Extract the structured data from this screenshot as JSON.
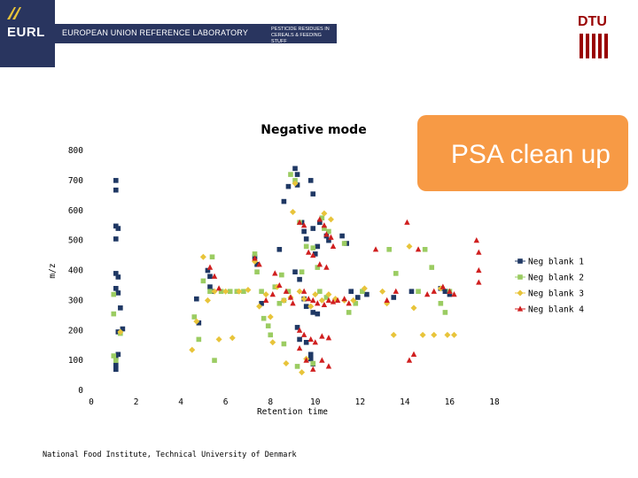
{
  "banner": {
    "logo_text": "EURL",
    "lab_name": "EUROPEAN UNION REFERENCE LABORATORY",
    "lab_scope": "PESTICIDE RESIDUES IN CEREALS & FEEDING STUFF",
    "institution_logo": "DTU"
  },
  "callout": {
    "text": "PSA clean up"
  },
  "footer": {
    "text": "National Food Institute, Technical University of Denmark"
  },
  "chart_data": {
    "type": "scatter",
    "title": "Negative mode",
    "xlabel": "Retention time",
    "ylabel": "m/z",
    "xlim": [
      0,
      18
    ],
    "ylim": [
      0,
      800
    ],
    "xticks": [
      "0",
      "2",
      "4",
      "6",
      "8",
      "10",
      "12",
      "14",
      "16",
      "18"
    ],
    "yticks": [
      "0",
      "100",
      "200",
      "300",
      "400",
      "500",
      "600",
      "700",
      "800"
    ],
    "series": [
      {
        "name": "Neg blank 1",
        "marker": "square",
        "color": "#1f3864",
        "points": [
          [
            1.1,
            700
          ],
          [
            1.1,
            668
          ],
          [
            1.1,
            548
          ],
          [
            1.2,
            540
          ],
          [
            1.1,
            505
          ],
          [
            1.1,
            390
          ],
          [
            1.2,
            378
          ],
          [
            1.1,
            340
          ],
          [
            1.2,
            325
          ],
          [
            1.3,
            275
          ],
          [
            1.2,
            195
          ],
          [
            1.4,
            205
          ],
          [
            1.2,
            120
          ],
          [
            1.1,
            110
          ],
          [
            1.1,
            85
          ],
          [
            1.1,
            70
          ],
          [
            4.7,
            305
          ],
          [
            4.8,
            225
          ],
          [
            5.2,
            400
          ],
          [
            5.3,
            380
          ],
          [
            5.3,
            345
          ],
          [
            5.4,
            330
          ],
          [
            7.3,
            445
          ],
          [
            7.4,
            420
          ],
          [
            7.6,
            290
          ],
          [
            8.4,
            470
          ],
          [
            8.6,
            630
          ],
          [
            8.8,
            680
          ],
          [
            9.1,
            740
          ],
          [
            9.2,
            720
          ],
          [
            9.2,
            685
          ],
          [
            9.4,
            560
          ],
          [
            9.5,
            530
          ],
          [
            9.6,
            505
          ],
          [
            9.8,
            700
          ],
          [
            9.9,
            655
          ],
          [
            9.9,
            540
          ],
          [
            10.0,
            455
          ],
          [
            10.1,
            480
          ],
          [
            10.2,
            560
          ],
          [
            10.5,
            515
          ],
          [
            10.6,
            500
          ],
          [
            9.1,
            395
          ],
          [
            9.3,
            370
          ],
          [
            9.5,
            305
          ],
          [
            9.6,
            280
          ],
          [
            9.9,
            260
          ],
          [
            10.1,
            255
          ],
          [
            9.2,
            210
          ],
          [
            9.3,
            170
          ],
          [
            9.6,
            160
          ],
          [
            9.8,
            120
          ],
          [
            9.8,
            105
          ],
          [
            9.9,
            88
          ],
          [
            11.2,
            515
          ],
          [
            11.4,
            490
          ],
          [
            11.6,
            330
          ],
          [
            11.9,
            310
          ],
          [
            12.3,
            320
          ],
          [
            13.5,
            310
          ],
          [
            14.3,
            330
          ],
          [
            15.6,
            340
          ],
          [
            15.8,
            330
          ],
          [
            16.0,
            320
          ]
        ]
      },
      {
        "name": "Neg blank 2",
        "marker": "square",
        "color": "#9bcc62",
        "points": [
          [
            1.0,
            320
          ],
          [
            1.0,
            255
          ],
          [
            1.0,
            115
          ],
          [
            1.1,
            100
          ],
          [
            1.3,
            190
          ],
          [
            4.6,
            245
          ],
          [
            4.8,
            170
          ],
          [
            5.0,
            365
          ],
          [
            5.3,
            330
          ],
          [
            5.4,
            445
          ],
          [
            5.5,
            100
          ],
          [
            5.8,
            330
          ],
          [
            6.2,
            330
          ],
          [
            6.5,
            330
          ],
          [
            6.8,
            330
          ],
          [
            7.3,
            455
          ],
          [
            7.4,
            395
          ],
          [
            7.6,
            330
          ],
          [
            7.7,
            240
          ],
          [
            7.9,
            215
          ],
          [
            8.0,
            185
          ],
          [
            8.2,
            345
          ],
          [
            8.4,
            290
          ],
          [
            8.5,
            385
          ],
          [
            8.6,
            300
          ],
          [
            8.8,
            330
          ],
          [
            8.9,
            720
          ],
          [
            9.1,
            700
          ],
          [
            9.3,
            560
          ],
          [
            9.4,
            395
          ],
          [
            9.6,
            480
          ],
          [
            9.9,
            475
          ],
          [
            10.1,
            410
          ],
          [
            10.3,
            575
          ],
          [
            10.4,
            540
          ],
          [
            10.6,
            530
          ],
          [
            10.2,
            330
          ],
          [
            10.5,
            310
          ],
          [
            11.3,
            490
          ],
          [
            11.8,
            290
          ],
          [
            11.5,
            260
          ],
          [
            12.1,
            330
          ],
          [
            13.3,
            470
          ],
          [
            13.6,
            390
          ],
          [
            14.6,
            330
          ],
          [
            14.9,
            470
          ],
          [
            15.2,
            410
          ],
          [
            15.6,
            290
          ],
          [
            15.8,
            260
          ],
          [
            16.0,
            330
          ],
          [
            9.2,
            80
          ],
          [
            9.9,
            90
          ],
          [
            8.6,
            155
          ]
        ]
      },
      {
        "name": "Neg blank 3",
        "marker": "diamond",
        "color": "#e8c43a",
        "points": [
          [
            1.3,
            195
          ],
          [
            4.5,
            135
          ],
          [
            4.7,
            230
          ],
          [
            5.0,
            445
          ],
          [
            5.2,
            300
          ],
          [
            5.5,
            330
          ],
          [
            5.7,
            170
          ],
          [
            6.0,
            330
          ],
          [
            6.3,
            175
          ],
          [
            6.6,
            330
          ],
          [
            7.0,
            335
          ],
          [
            7.3,
            430
          ],
          [
            7.5,
            280
          ],
          [
            7.8,
            320
          ],
          [
            8.0,
            245
          ],
          [
            8.1,
            160
          ],
          [
            8.3,
            345
          ],
          [
            8.6,
            300
          ],
          [
            8.9,
            310
          ],
          [
            9.0,
            595
          ],
          [
            9.1,
            690
          ],
          [
            9.3,
            330
          ],
          [
            9.5,
            305
          ],
          [
            9.8,
            280
          ],
          [
            10.0,
            320
          ],
          [
            10.4,
            590
          ],
          [
            10.7,
            570
          ],
          [
            10.3,
            300
          ],
          [
            10.6,
            320
          ],
          [
            10.9,
            305
          ],
          [
            11.3,
            300
          ],
          [
            11.7,
            300
          ],
          [
            12.2,
            340
          ],
          [
            13.0,
            330
          ],
          [
            13.2,
            290
          ],
          [
            13.5,
            185
          ],
          [
            14.2,
            480
          ],
          [
            14.4,
            275
          ],
          [
            14.8,
            185
          ],
          [
            15.3,
            185
          ],
          [
            15.6,
            340
          ],
          [
            15.9,
            185
          ],
          [
            16.2,
            185
          ],
          [
            8.7,
            90
          ],
          [
            9.4,
            60
          ],
          [
            9.6,
            105
          ]
        ]
      },
      {
        "name": "Neg blank 4",
        "marker": "triangle",
        "color": "#d01f1f",
        "points": [
          [
            5.3,
            410
          ],
          [
            5.5,
            380
          ],
          [
            5.7,
            340
          ],
          [
            7.3,
            440
          ],
          [
            7.5,
            420
          ],
          [
            7.8,
            300
          ],
          [
            8.1,
            320
          ],
          [
            8.2,
            390
          ],
          [
            8.4,
            350
          ],
          [
            8.7,
            330
          ],
          [
            8.9,
            310
          ],
          [
            9.0,
            290
          ],
          [
            9.3,
            560
          ],
          [
            9.5,
            550
          ],
          [
            9.7,
            460
          ],
          [
            9.9,
            450
          ],
          [
            10.2,
            570
          ],
          [
            10.4,
            550
          ],
          [
            10.5,
            520
          ],
          [
            10.7,
            510
          ],
          [
            10.8,
            480
          ],
          [
            9.5,
            330
          ],
          [
            9.7,
            305
          ],
          [
            9.9,
            300
          ],
          [
            10.1,
            290
          ],
          [
            10.4,
            285
          ],
          [
            10.6,
            300
          ],
          [
            10.8,
            295
          ],
          [
            11.0,
            300
          ],
          [
            11.3,
            305
          ],
          [
            11.5,
            290
          ],
          [
            10.2,
            420
          ],
          [
            10.5,
            410
          ],
          [
            9.3,
            200
          ],
          [
            9.5,
            185
          ],
          [
            9.8,
            170
          ],
          [
            10.0,
            160
          ],
          [
            10.3,
            180
          ],
          [
            10.6,
            175
          ],
          [
            9.3,
            140
          ],
          [
            9.6,
            100
          ],
          [
            9.9,
            70
          ],
          [
            10.3,
            100
          ],
          [
            10.6,
            80
          ],
          [
            12.7,
            470
          ],
          [
            13.2,
            300
          ],
          [
            13.6,
            330
          ],
          [
            14.1,
            560
          ],
          [
            14.6,
            470
          ],
          [
            15.0,
            320
          ],
          [
            15.3,
            330
          ],
          [
            15.7,
            345
          ],
          [
            16.0,
            330
          ],
          [
            16.2,
            320
          ],
          [
            17.2,
            500
          ],
          [
            17.3,
            460
          ],
          [
            17.3,
            400
          ],
          [
            17.3,
            360
          ],
          [
            14.4,
            120
          ],
          [
            14.2,
            100
          ]
        ]
      }
    ],
    "legend_position": "right"
  }
}
